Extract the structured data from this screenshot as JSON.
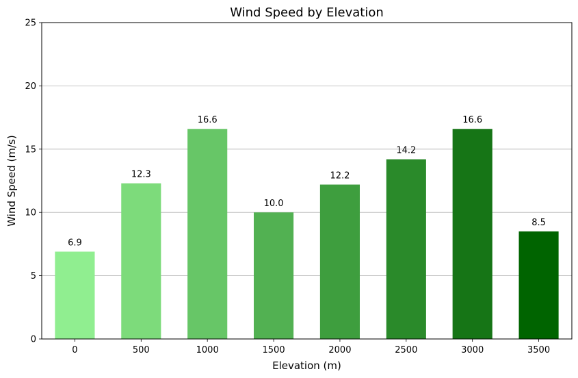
{
  "chart_data": {
    "type": "bar",
    "title": "Wind Speed by Elevation",
    "xlabel": "Elevation (m)",
    "ylabel": "Wind Speed (m/s)",
    "categories": [
      "0",
      "500",
      "1000",
      "1500",
      "2000",
      "2500",
      "3000",
      "3500"
    ],
    "values": [
      6.9,
      12.3,
      16.6,
      10.0,
      12.2,
      14.2,
      16.6,
      8.5
    ],
    "value_labels": [
      "6.9",
      "12.3",
      "16.6",
      "10.0",
      "12.2",
      "14.2",
      "16.6",
      "8.5"
    ],
    "bar_colors": [
      "#90ee90",
      "#7ddb7b",
      "#67c667",
      "#52b152",
      "#3e9e3e",
      "#2a8a2a",
      "#167516",
      "#006400"
    ],
    "ylim": [
      0,
      25
    ],
    "yticks": [
      0,
      5,
      10,
      15,
      20,
      25
    ],
    "grid": "y",
    "legend": "none"
  }
}
